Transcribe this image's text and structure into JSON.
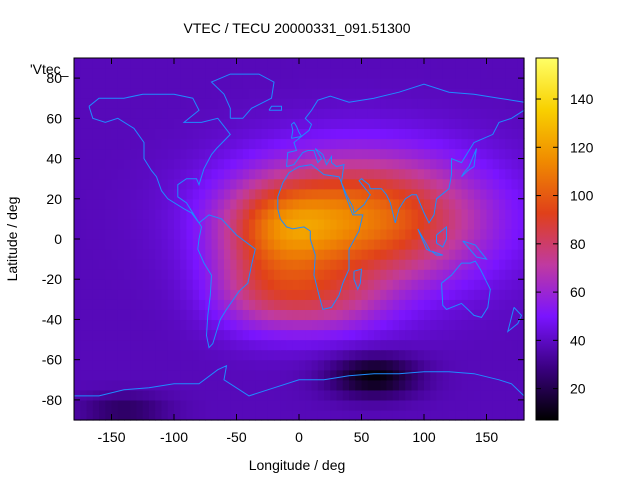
{
  "chart_data": {
    "type": "heatmap",
    "title": "VTEC / TECU 20000331_091.51300",
    "xlabel": "Longitude / deg",
    "ylabel": "Latitude / deg",
    "xlim": [
      -180,
      180
    ],
    "ylim": [
      -90,
      90
    ],
    "x_ticks": [
      -150,
      -100,
      -50,
      0,
      50,
      100,
      150
    ],
    "y_ticks": [
      -80,
      -60,
      -40,
      -20,
      0,
      20,
      40,
      60,
      80
    ],
    "legend_entry": "'Vtec_",
    "colorbar": {
      "range": [
        7,
        157
      ],
      "ticks": [
        20,
        40,
        60,
        80,
        100,
        120,
        140
      ],
      "palette": [
        "#000000",
        "#3a0080",
        "#7a14ff",
        "#c03aa0",
        "#e0401a",
        "#f08a00",
        "#f8d000",
        "#ffff66"
      ]
    },
    "overlay": "coastlines",
    "overlay_color": "#1e8cff",
    "field": {
      "background": 38,
      "features": [
        {
          "lon": 50,
          "lat": 10,
          "sx": 95,
          "sy": 32,
          "amp": 70
        },
        {
          "lon": -15,
          "lat": 5,
          "sx": 45,
          "sy": 22,
          "amp": 35
        },
        {
          "lon": 15,
          "lat": -30,
          "sx": 55,
          "sy": 18,
          "amp": 30
        },
        {
          "lon": -35,
          "lat": -25,
          "sx": 40,
          "sy": 20,
          "amp": 20
        },
        {
          "lon": 60,
          "lat": -68,
          "sx": 35,
          "sy": 10,
          "amp": -30
        },
        {
          "lon": -140,
          "lat": -85,
          "sx": 35,
          "sy": 8,
          "amp": -15
        }
      ]
    }
  }
}
